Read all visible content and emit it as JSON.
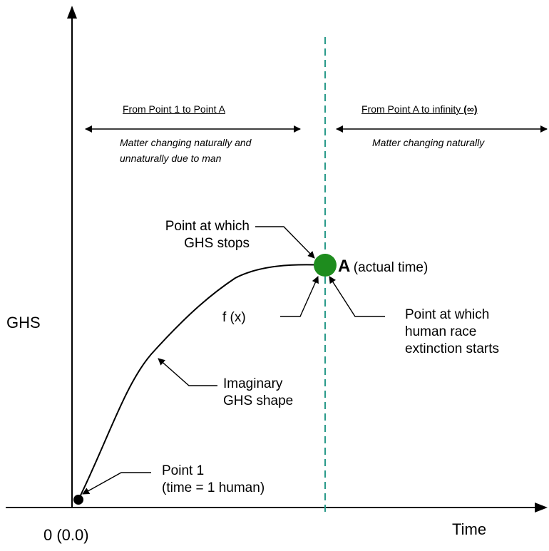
{
  "axes": {
    "y_label": "GHS",
    "x_label": "Time",
    "origin_label": "0 (0.0)"
  },
  "region_left": {
    "title": "From Point 1 to Point A",
    "desc_line1": "Matter changing naturally and",
    "desc_line2": "unnaturally due to man"
  },
  "region_right": {
    "title_prefix": "From Point A to infinity ",
    "title_symbol": "(∞)",
    "desc": "Matter changing naturally"
  },
  "point_a": {
    "letter": "A",
    "note": "(actual time)",
    "color": "#1e8c1e"
  },
  "divider_color": "#2a9a8a",
  "annotations": {
    "ghs_stops_line1": "Point at which",
    "ghs_stops_line2": "GHS stops",
    "function": "f (x)",
    "extinction_line1": "Point at which",
    "extinction_line2": "human race",
    "extinction_line3": "extinction starts",
    "shape_line1": "Imaginary",
    "shape_line2": "GHS shape",
    "point1_line1": "Point 1",
    "point1_line2": "(time = 1 human)"
  }
}
